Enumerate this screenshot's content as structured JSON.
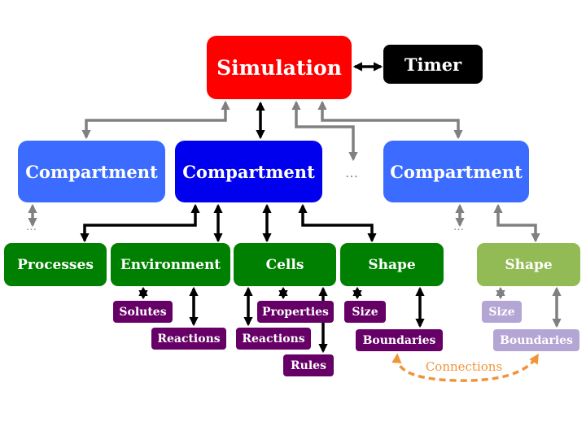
{
  "nodes": {
    "simulation": "Simulation",
    "timer": "Timer",
    "compartment_left": "Compartment",
    "compartment_center": "Compartment",
    "compartment_right": "Compartment",
    "processes": "Processes",
    "environment": "Environment",
    "cells": "Cells",
    "shape": "Shape",
    "shape_right": "Shape",
    "solutes": "Solutes",
    "env_reactions": "Reactions",
    "properties": "Properties",
    "cell_reactions": "Reactions",
    "rules": "Rules",
    "size": "Size",
    "boundaries": "Boundaries",
    "size_right": "Size",
    "boundaries_right": "Boundaries"
  },
  "connections_label": "Connections",
  "ellipsis": "…",
  "colors": {
    "simulation": "#ff0000",
    "timer": "#000000",
    "compartment_active": "#0000ee",
    "compartment_other": "#3b6cff",
    "component": "#008000",
    "component_faded": "#93bb55",
    "sub_component": "#660066",
    "sub_component_faded": "#b3a6d4",
    "arrow_primary": "#000000",
    "arrow_secondary": "#808080",
    "connections": "#f0943a"
  }
}
